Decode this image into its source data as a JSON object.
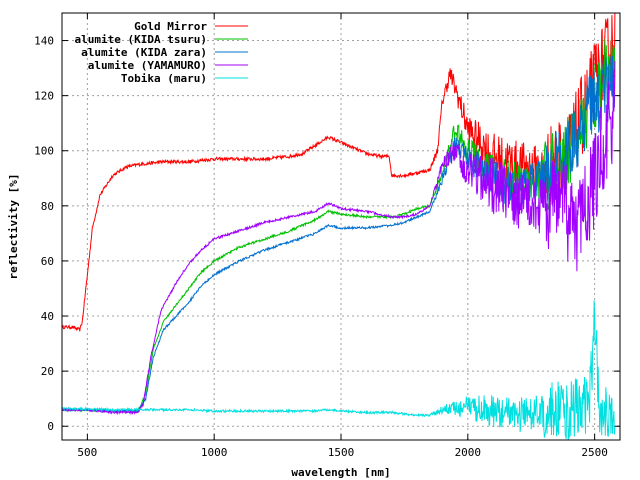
{
  "chart_data": {
    "type": "line",
    "xlabel": "wavelength [nm]",
    "ylabel": "reflectivity [%]",
    "xlim": [
      400,
      2600
    ],
    "ylim": [
      -5,
      150
    ],
    "xticks": [
      500,
      1000,
      1500,
      2000,
      2500
    ],
    "yticks": [
      0,
      20,
      40,
      60,
      80,
      100,
      120,
      140
    ],
    "grid": true,
    "legend_position": "top-left",
    "series": [
      {
        "name": "Gold Mirror",
        "color": "#ff0000",
        "noise_low": 0.6,
        "noise_high": 8,
        "points": [
          [
            400,
            36
          ],
          [
            440,
            36
          ],
          [
            470,
            35
          ],
          [
            480,
            38
          ],
          [
            500,
            55
          ],
          [
            520,
            72
          ],
          [
            550,
            84
          ],
          [
            600,
            91
          ],
          [
            650,
            94
          ],
          [
            700,
            95
          ],
          [
            800,
            96
          ],
          [
            900,
            96
          ],
          [
            1000,
            97
          ],
          [
            1100,
            97
          ],
          [
            1200,
            97
          ],
          [
            1300,
            98
          ],
          [
            1350,
            99
          ],
          [
            1400,
            102
          ],
          [
            1450,
            105
          ],
          [
            1500,
            103
          ],
          [
            1550,
            101
          ],
          [
            1600,
            99
          ],
          [
            1650,
            98
          ],
          [
            1690,
            98
          ],
          [
            1700,
            91
          ],
          [
            1750,
            91
          ],
          [
            1800,
            92
          ],
          [
            1850,
            93
          ],
          [
            1880,
            100
          ],
          [
            1900,
            118
          ],
          [
            1930,
            128
          ],
          [
            1960,
            120
          ],
          [
            2000,
            108
          ],
          [
            2100,
            98
          ],
          [
            2200,
            95
          ],
          [
            2300,
            93
          ],
          [
            2400,
            100
          ],
          [
            2500,
            125
          ],
          [
            2580,
            140
          ]
        ]
      },
      {
        "name": "alumite (KIDA tsuru)",
        "color": "#00c000",
        "noise_low": 0.4,
        "noise_high": 7,
        "points": [
          [
            400,
            6
          ],
          [
            500,
            6
          ],
          [
            600,
            5.5
          ],
          [
            700,
            5.5
          ],
          [
            730,
            12
          ],
          [
            760,
            28
          ],
          [
            800,
            38
          ],
          [
            850,
            44
          ],
          [
            900,
            50
          ],
          [
            950,
            56
          ],
          [
            1000,
            60
          ],
          [
            1100,
            65
          ],
          [
            1200,
            68
          ],
          [
            1300,
            71
          ],
          [
            1400,
            75
          ],
          [
            1450,
            78
          ],
          [
            1500,
            77
          ],
          [
            1600,
            76
          ],
          [
            1700,
            76
          ],
          [
            1750,
            77
          ],
          [
            1800,
            79
          ],
          [
            1850,
            80
          ],
          [
            1900,
            92
          ],
          [
            1950,
            108
          ],
          [
            2000,
            100
          ],
          [
            2100,
            92
          ],
          [
            2200,
            88
          ],
          [
            2300,
            90
          ],
          [
            2400,
            100
          ],
          [
            2500,
            120
          ],
          [
            2580,
            135
          ]
        ]
      },
      {
        "name": "alumite (KIDA zara)",
        "color": "#0070d0",
        "noise_low": 0.4,
        "noise_high": 7,
        "points": [
          [
            400,
            6
          ],
          [
            500,
            6
          ],
          [
            600,
            5.5
          ],
          [
            700,
            5.5
          ],
          [
            730,
            10
          ],
          [
            760,
            25
          ],
          [
            800,
            35
          ],
          [
            850,
            40
          ],
          [
            900,
            45
          ],
          [
            950,
            51
          ],
          [
            1000,
            55
          ],
          [
            1100,
            60
          ],
          [
            1200,
            64
          ],
          [
            1300,
            67
          ],
          [
            1400,
            70
          ],
          [
            1450,
            73
          ],
          [
            1500,
            72
          ],
          [
            1600,
            72
          ],
          [
            1700,
            73
          ],
          [
            1750,
            74
          ],
          [
            1800,
            76
          ],
          [
            1850,
            78
          ],
          [
            1900,
            90
          ],
          [
            1950,
            103
          ],
          [
            2000,
            97
          ],
          [
            2100,
            90
          ],
          [
            2200,
            86
          ],
          [
            2300,
            90
          ],
          [
            2400,
            100
          ],
          [
            2500,
            118
          ],
          [
            2580,
            125
          ]
        ]
      },
      {
        "name": "alumite (YAMAMURO)",
        "color": "#a000ff",
        "noise_low": 0.4,
        "noise_high": 10,
        "points": [
          [
            400,
            6
          ],
          [
            500,
            6
          ],
          [
            600,
            5
          ],
          [
            700,
            5
          ],
          [
            720,
            8
          ],
          [
            750,
            25
          ],
          [
            790,
            42
          ],
          [
            850,
            52
          ],
          [
            900,
            59
          ],
          [
            950,
            64
          ],
          [
            1000,
            68
          ],
          [
            1100,
            71
          ],
          [
            1200,
            74
          ],
          [
            1300,
            76
          ],
          [
            1400,
            78
          ],
          [
            1450,
            81
          ],
          [
            1500,
            79
          ],
          [
            1600,
            78
          ],
          [
            1700,
            76
          ],
          [
            1750,
            76
          ],
          [
            1800,
            77
          ],
          [
            1850,
            80
          ],
          [
            1900,
            95
          ],
          [
            1950,
            100
          ],
          [
            2000,
            93
          ],
          [
            2100,
            87
          ],
          [
            2200,
            82
          ],
          [
            2300,
            80
          ],
          [
            2400,
            78
          ],
          [
            2450,
            72
          ],
          [
            2500,
            90
          ],
          [
            2580,
            115
          ]
        ]
      },
      {
        "name": "Tobika (maru)",
        "color": "#00e0e0",
        "noise_low": 0.4,
        "noise_high": 6,
        "points": [
          [
            400,
            6.5
          ],
          [
            600,
            6
          ],
          [
            700,
            6
          ],
          [
            800,
            6
          ],
          [
            900,
            6
          ],
          [
            1000,
            5.5
          ],
          [
            1200,
            5.5
          ],
          [
            1400,
            5.5
          ],
          [
            1450,
            6
          ],
          [
            1500,
            5.5
          ],
          [
            1600,
            5
          ],
          [
            1700,
            5
          ],
          [
            1800,
            4
          ],
          [
            1850,
            4
          ],
          [
            1900,
            6
          ],
          [
            2000,
            7
          ],
          [
            2100,
            5
          ],
          [
            2200,
            4
          ],
          [
            2300,
            5
          ],
          [
            2400,
            6
          ],
          [
            2480,
            8
          ],
          [
            2500,
            40
          ],
          [
            2520,
            5
          ],
          [
            2580,
            3
          ]
        ]
      }
    ]
  }
}
